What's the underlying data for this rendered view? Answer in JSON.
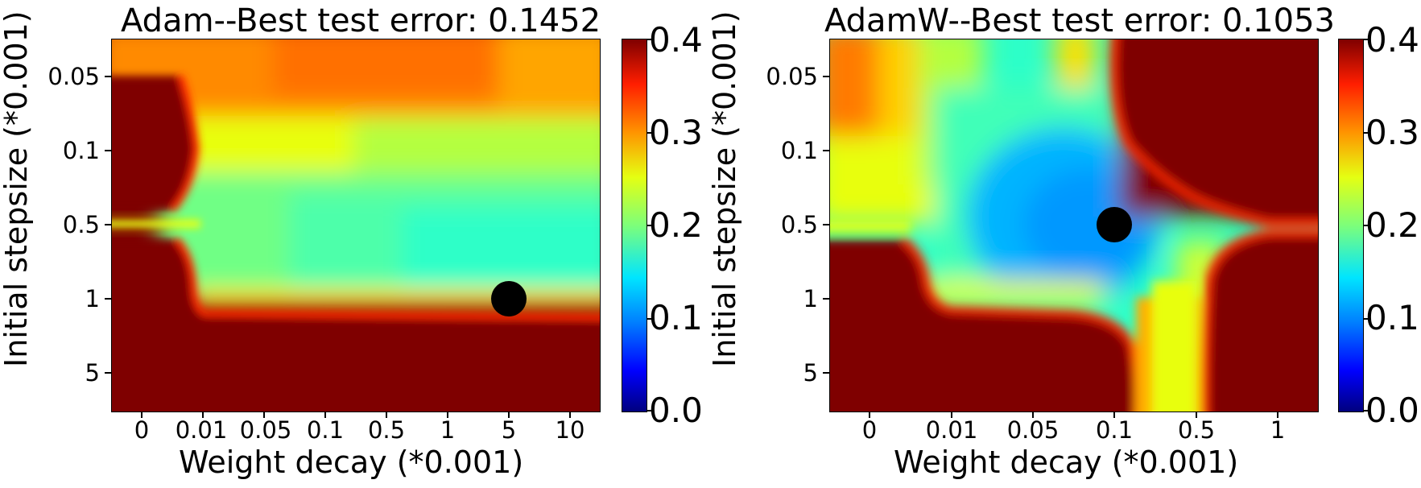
{
  "chart_data": [
    {
      "type": "heatmap",
      "title": "Adam--Best test error: 0.1452",
      "xlabel": "Weight decay (*0.001)",
      "ylabel": "Initial stepsize (*0.001)",
      "x_ticks": [
        "0",
        "0.01",
        "0.05",
        "0.1",
        "0.5",
        "1",
        "5",
        "10"
      ],
      "y_ticks": [
        "0.05",
        "0.1",
        "0.5",
        "1",
        "5"
      ],
      "colorbar": {
        "min": 0.0,
        "max": 0.4,
        "ticks": [
          "0.0",
          "0.1",
          "0.2",
          "0.3",
          "0.4"
        ],
        "colormap": "jet"
      },
      "best_point": {
        "x": "5",
        "y": "1",
        "value": 0.1452
      },
      "grid": false
    },
    {
      "type": "heatmap",
      "title": "AdamW--Best test error: 0.1053",
      "xlabel": "Weight decay (*0.001)",
      "ylabel": "Initial stepsize (*0.001)",
      "x_ticks": [
        "0",
        "0.01",
        "0.05",
        "0.1",
        "0.5",
        "1"
      ],
      "y_ticks": [
        "0.05",
        "0.1",
        "0.5",
        "1",
        "5"
      ],
      "colorbar": {
        "min": 0.0,
        "max": 0.4,
        "ticks": [
          "0.0",
          "0.1",
          "0.2",
          "0.3",
          "0.4"
        ],
        "colormap": "jet"
      },
      "best_point": {
        "x": "0.1",
        "y": "0.5",
        "value": 0.1053
      },
      "grid": false
    }
  ]
}
